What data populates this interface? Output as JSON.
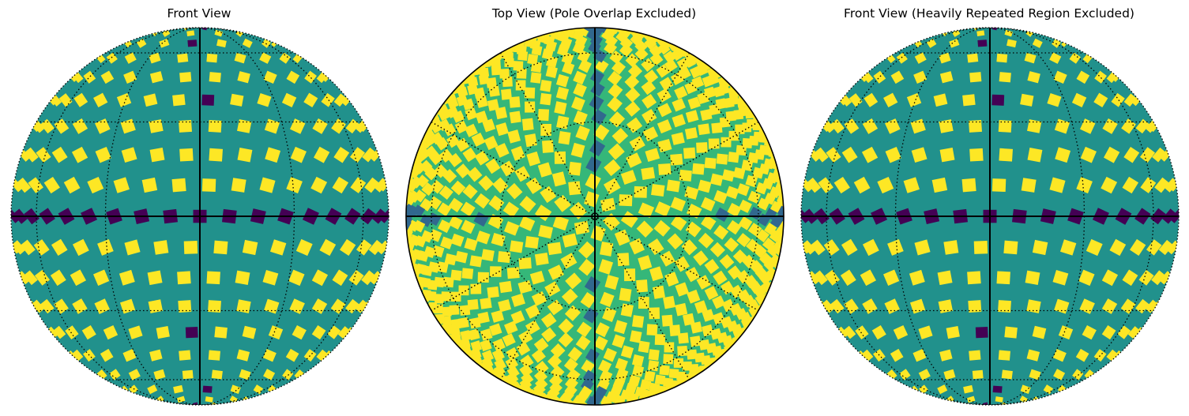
{
  "panels": [
    {
      "title": "Front View",
      "view": "front"
    },
    {
      "title": "Top View (Pole Overlap Excluded)",
      "view": "top"
    },
    {
      "title": "Front View (Heavily Repeated Region Excluded)",
      "view": "front"
    }
  ],
  "colors": {
    "tile": "#fde725",
    "gap": "#21918c",
    "overlap_dark": "#440154",
    "overlap_mid": "#31688e",
    "top_gap": "#35b779",
    "grid": "#000000"
  }
}
